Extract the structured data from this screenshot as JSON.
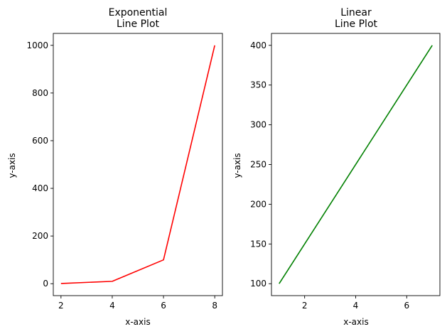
{
  "chart_data": [
    {
      "type": "line",
      "title": [
        "Exponential",
        "Line Plot"
      ],
      "xlabel": "x-axis",
      "ylabel": "y-axis",
      "xlim": [
        1.7,
        8.3
      ],
      "ylim": [
        -50,
        1050
      ],
      "xticks": [
        2,
        4,
        6,
        8
      ],
      "yticks": [
        0,
        200,
        400,
        600,
        800,
        1000
      ],
      "grid": false,
      "series": [
        {
          "x": [
            2,
            4,
            6,
            8
          ],
          "y": [
            1,
            10,
            100,
            1000
          ],
          "color": "#ff0000"
        }
      ]
    },
    {
      "type": "line",
      "title": [
        "Linear",
        "Line Plot"
      ],
      "xlabel": "x-axis",
      "ylabel": "y-axis",
      "xlim": [
        0.7,
        7.3
      ],
      "ylim": [
        85,
        415
      ],
      "xticks": [
        2,
        4,
        6
      ],
      "yticks": [
        100,
        150,
        200,
        250,
        300,
        350,
        400
      ],
      "grid": false,
      "series": [
        {
          "x": [
            1,
            7
          ],
          "y": [
            100,
            400
          ],
          "color": "#008000"
        }
      ]
    }
  ]
}
